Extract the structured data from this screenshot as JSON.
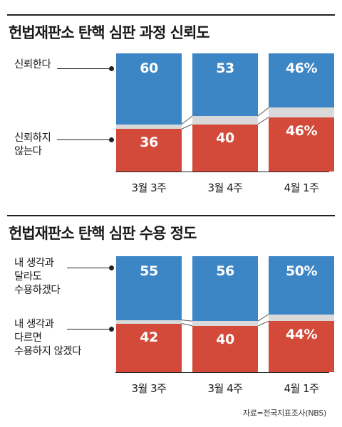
{
  "source": "자료=전국지표조사(NBS)",
  "chart_data": [
    {
      "type": "bar",
      "stacked": true,
      "title": "헌법재판소 탄핵 심판 과정 신뢰도",
      "categories": [
        "3월 3주",
        "3월 4주",
        "4월 1주"
      ],
      "series": [
        {
          "name": "신뢰한다",
          "values": [
            60,
            53,
            46
          ],
          "labels": [
            "60",
            "53",
            "46%"
          ],
          "color": "#3d86c6"
        },
        {
          "name": "신뢰하지 않는다",
          "name_lines": [
            "신뢰하지",
            "않는다"
          ],
          "values": [
            36,
            40,
            46
          ],
          "labels": [
            "36",
            "40",
            "46%"
          ],
          "color": "#d34a3a"
        }
      ],
      "ylim": [
        0,
        100
      ],
      "grid": false
    },
    {
      "type": "bar",
      "stacked": true,
      "title": "헌법재판소 탄핵 심판 수용 정도",
      "categories": [
        "3월 3주",
        "3월 4주",
        "4월 1주"
      ],
      "series": [
        {
          "name": "내 생각과 달라도 수용하겠다",
          "name_lines": [
            "내 생각과",
            "달라도",
            "수용하겠다"
          ],
          "values": [
            55,
            56,
            50
          ],
          "labels": [
            "55",
            "56",
            "50%"
          ],
          "color": "#3d86c6"
        },
        {
          "name": "내 생각과 다르면 수용하지 않겠다",
          "name_lines": [
            "내 생각과",
            "다르면",
            "수용하지 않겠다"
          ],
          "values": [
            42,
            40,
            44
          ],
          "labels": [
            "42",
            "40",
            "44%"
          ],
          "color": "#d34a3a"
        }
      ],
      "ylim": [
        0,
        100
      ],
      "grid": false
    }
  ]
}
